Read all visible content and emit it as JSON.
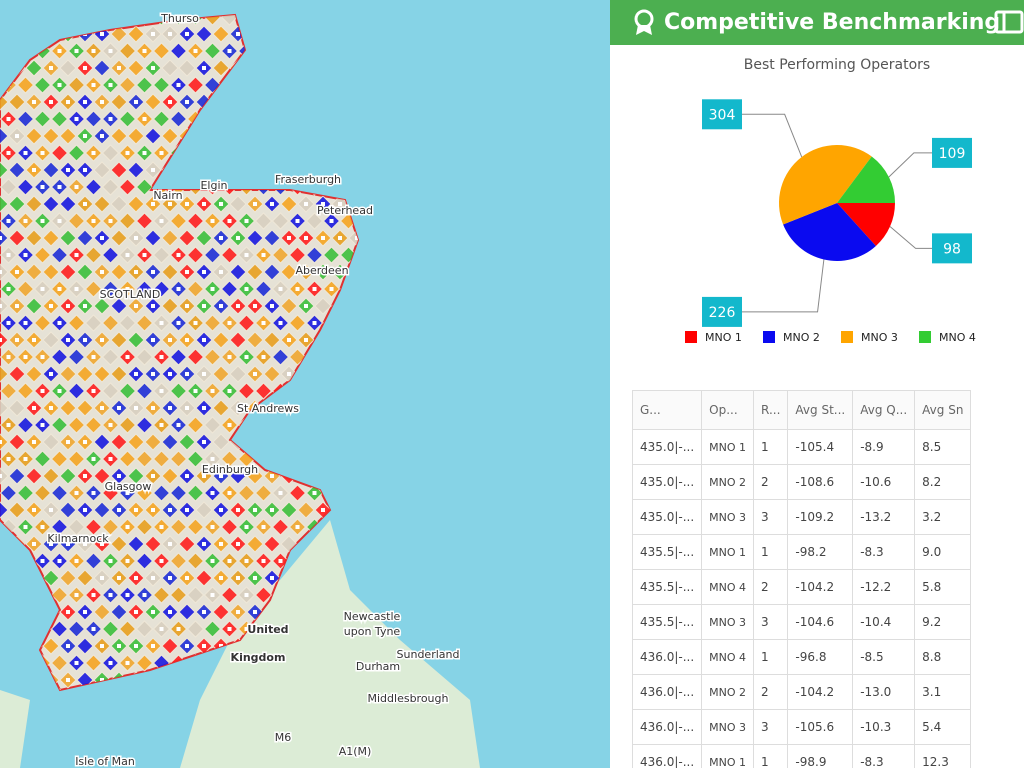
{
  "map": {
    "labels": [
      "Thurso",
      "Fraserburgh",
      "Peterhead",
      "Nairn",
      "Elgin",
      "Aberdeen",
      "SCOTLAND",
      "St Andrews",
      "Edinburgh",
      "Glasgow",
      "Kilmarnock",
      "Newcastle upon Tyne",
      "Sunderland",
      "Durham",
      "Middlesbrough",
      "United Kingdom",
      "Isle of Man",
      "M6",
      "A1(M)"
    ]
  },
  "panel": {
    "title": "Competitive Benchmarking"
  },
  "chart_data": {
    "type": "pie",
    "title": "Best Performing Operators",
    "categories": [
      "MNO 1",
      "MNO 2",
      "MNO 3",
      "MNO 4"
    ],
    "values": [
      98,
      226,
      304,
      109
    ],
    "colors": [
      "#ff0000",
      "#0a0af0",
      "#ffa500",
      "#33cc33"
    ]
  },
  "table": {
    "headers": [
      "G...",
      "Op...",
      "R...",
      "Avg St...",
      "Avg Q...",
      "Avg Sn"
    ],
    "rows": [
      [
        "435.0|-...",
        "MNO 1",
        "1",
        "-105.4",
        "-8.9",
        "8.5"
      ],
      [
        "435.0|-...",
        "MNO 2",
        "2",
        "-108.6",
        "-10.6",
        "8.2"
      ],
      [
        "435.0|-...",
        "MNO 3",
        "3",
        "-109.2",
        "-13.2",
        "3.2"
      ],
      [
        "435.5|-...",
        "MNO 1",
        "1",
        "-98.2",
        "-8.3",
        "9.0"
      ],
      [
        "435.5|-...",
        "MNO 4",
        "2",
        "-104.2",
        "-12.2",
        "5.8"
      ],
      [
        "435.5|-...",
        "MNO 3",
        "3",
        "-104.6",
        "-10.4",
        "9.2"
      ],
      [
        "436.0|-...",
        "MNO 4",
        "1",
        "-96.8",
        "-8.5",
        "8.8"
      ],
      [
        "436.0|-...",
        "MNO 2",
        "2",
        "-104.2",
        "-13.0",
        "3.1"
      ],
      [
        "436.0|-...",
        "MNO 3",
        "3",
        "-105.6",
        "-10.3",
        "5.4"
      ],
      [
        "436.0|-...",
        "MNO 1",
        "1",
        "-98.9",
        "-8.3",
        "12.3"
      ]
    ]
  }
}
